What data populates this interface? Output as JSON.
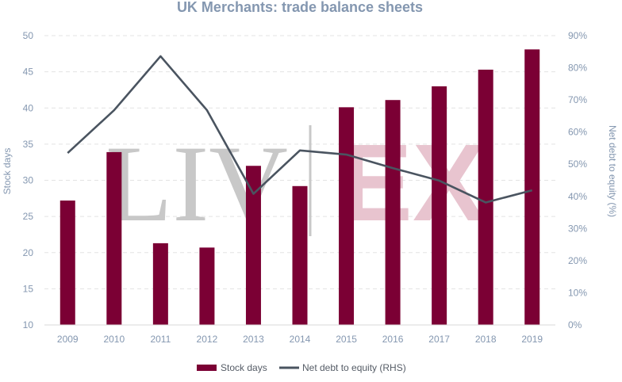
{
  "chart_data": {
    "type": "bar",
    "title": "UK Merchants: trade balance sheets",
    "categories": [
      "2009",
      "2010",
      "2011",
      "2012",
      "2013",
      "2014",
      "2015",
      "2016",
      "2017",
      "2018",
      "2019"
    ],
    "ylabel": "Stock days",
    "y2label": "Net debt to equity (%)",
    "ylim": [
      10,
      50
    ],
    "y2lim": [
      0,
      90
    ],
    "yticks": [
      "10",
      "15",
      "20",
      "25",
      "30",
      "35",
      "40",
      "45",
      "50"
    ],
    "y2ticks": [
      "0%",
      "10%",
      "20%",
      "30%",
      "40%",
      "50%",
      "60%",
      "70%",
      "80%",
      "90%"
    ],
    "grid": true,
    "legend_position": "bottom",
    "series": [
      {
        "name": "Stock days",
        "type": "bar",
        "axis": "left",
        "color": "#7b0034",
        "values": [
          27.2,
          33.9,
          21.3,
          20.7,
          32.0,
          29.2,
          40.1,
          41.1,
          43.0,
          45.3,
          48.1
        ]
      },
      {
        "name": "Net debt to equity (RHS)",
        "type": "line",
        "axis": "right",
        "color": "#4a5460",
        "values": [
          53.5,
          66.8,
          83.6,
          66.8,
          40.8,
          54.3,
          53.0,
          48.8,
          44.9,
          38.1,
          41.9
        ]
      }
    ]
  },
  "watermark": {
    "left_text": "LIV",
    "right_text": "EX",
    "left_color": "#c8c8c8",
    "right_color": "#e8c4cf"
  }
}
